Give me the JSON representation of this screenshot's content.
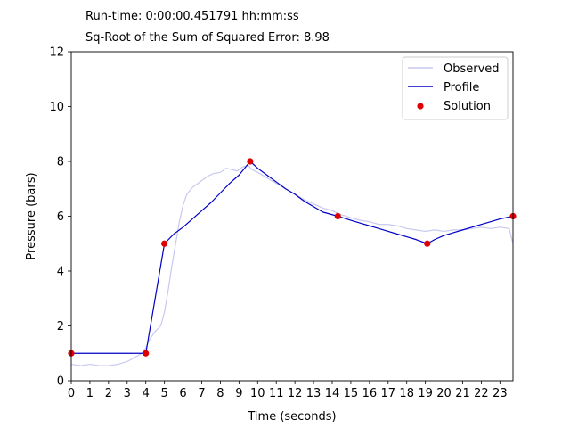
{
  "header": {
    "runtime_label": "Run-time: 0:00:00.451791 hh:mm:ss",
    "error_label": "Sq-Root of the Sum of Squared Error: 8.98"
  },
  "chart_data": {
    "type": "line",
    "xlabel": "Time (seconds)",
    "ylabel": "Pressure (bars)",
    "xlim": [
      0,
      23.7
    ],
    "ylim": [
      0,
      12
    ],
    "xticks": [
      0,
      1,
      2,
      3,
      4,
      5,
      6,
      7,
      8,
      9,
      10,
      11,
      12,
      13,
      14,
      15,
      16,
      17,
      18,
      19,
      20,
      21,
      22,
      23
    ],
    "yticks": [
      0,
      2,
      4,
      6,
      8,
      10,
      12
    ],
    "grid": false,
    "legend": {
      "placement": "top-right",
      "entries": [
        {
          "label": "Observed",
          "kind": "line",
          "color": "#c8c8f0"
        },
        {
          "label": "Profile",
          "kind": "line",
          "color": "#0000c8"
        },
        {
          "label": "Solution",
          "kind": "point",
          "color": "#e00000"
        }
      ]
    },
    "series": [
      {
        "name": "Observed",
        "color": "#c8c8f0",
        "x": [
          0,
          0.5,
          1,
          1.5,
          2,
          2.5,
          3,
          3.4,
          3.8,
          4,
          4.2,
          4.5,
          4.8,
          5,
          5.2,
          5.4,
          5.6,
          5.8,
          6,
          6.2,
          6.5,
          6.8,
          7,
          7.3,
          7.6,
          8,
          8.3,
          8.6,
          8.9,
          9.2,
          9.5,
          9.7,
          10,
          10.5,
          11,
          11.5,
          12,
          12.5,
          13,
          13.5,
          14,
          14.5,
          15,
          15.5,
          16,
          16.5,
          17,
          17.5,
          18,
          18.5,
          19,
          19.5,
          20,
          20.5,
          21,
          21.5,
          22,
          22.5,
          23,
          23.5,
          23.7
        ],
        "y": [
          0.6,
          0.55,
          0.6,
          0.55,
          0.55,
          0.6,
          0.7,
          0.85,
          1.0,
          1.2,
          1.5,
          1.8,
          2.0,
          2.5,
          3.3,
          4.2,
          5.0,
          5.8,
          6.4,
          6.8,
          7.05,
          7.2,
          7.3,
          7.45,
          7.55,
          7.6,
          7.75,
          7.7,
          7.65,
          7.8,
          7.85,
          7.7,
          7.6,
          7.4,
          7.2,
          7.0,
          6.8,
          6.6,
          6.45,
          6.3,
          6.2,
          6.05,
          5.95,
          5.85,
          5.8,
          5.7,
          5.7,
          5.65,
          5.55,
          5.5,
          5.45,
          5.5,
          5.45,
          5.5,
          5.5,
          5.55,
          5.6,
          5.55,
          5.6,
          5.55,
          5.0
        ]
      },
      {
        "name": "Profile",
        "color": "#0000c8",
        "x": [
          0,
          4,
          5,
          5.5,
          6,
          6.5,
          7,
          7.5,
          8,
          8.5,
          9,
          9.6,
          10,
          10.5,
          11,
          11.5,
          12,
          12.5,
          13,
          13.5,
          14.3,
          15,
          15.5,
          16,
          16.5,
          17,
          17.5,
          18,
          18.5,
          19.1,
          19.5,
          20,
          20.5,
          21,
          21.5,
          22,
          22.5,
          23,
          23.7
        ],
        "y": [
          1,
          1,
          5,
          5.35,
          5.6,
          5.9,
          6.2,
          6.5,
          6.85,
          7.2,
          7.5,
          8,
          7.75,
          7.5,
          7.25,
          7.0,
          6.8,
          6.55,
          6.35,
          6.15,
          6.0,
          5.85,
          5.75,
          5.65,
          5.55,
          5.45,
          5.35,
          5.25,
          5.15,
          5.0,
          5.15,
          5.3,
          5.4,
          5.5,
          5.6,
          5.7,
          5.8,
          5.9,
          6.0
        ]
      }
    ],
    "solution_points": {
      "name": "Solution",
      "color": "#e00000",
      "x": [
        0,
        4,
        5,
        9.6,
        14.3,
        19.1,
        23.7
      ],
      "y": [
        1,
        1,
        5,
        8,
        6,
        5,
        6
      ]
    }
  }
}
